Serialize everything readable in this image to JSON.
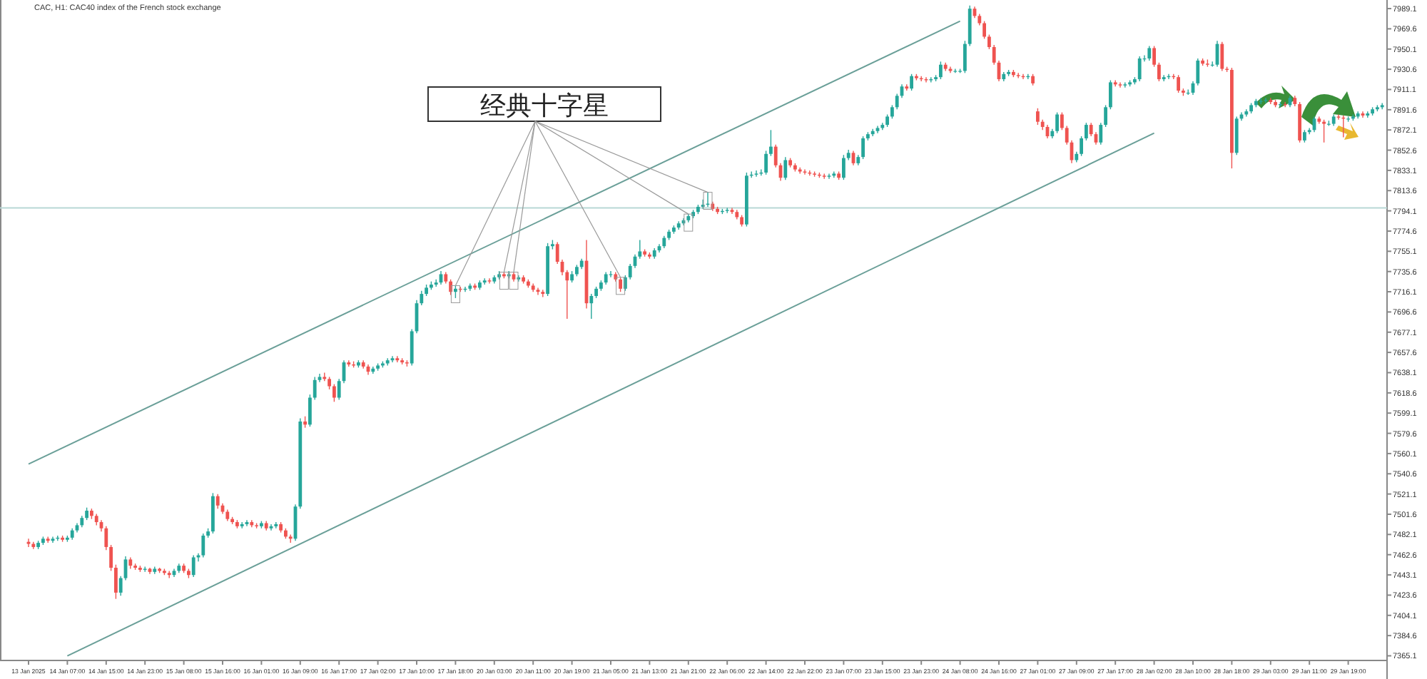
{
  "chart_data": {
    "type": "candlestick",
    "title": "CAC, H1:  CAC40 index of the French stock exchange",
    "categories": [
      "13 Jan 2025",
      null,
      null,
      null,
      null,
      null,
      null,
      null,
      "14 Jan 07:00",
      null,
      null,
      null,
      null,
      null,
      null,
      null,
      "14 Jan 15:00",
      null,
      null,
      null,
      null,
      null,
      null,
      null,
      "14 Jan 23:00",
      null,
      null,
      null,
      null,
      null,
      null,
      null,
      "15 Jan 08:00",
      null,
      null,
      null,
      null,
      null,
      null,
      null,
      "15 Jan 16:00",
      null,
      null,
      null,
      null,
      null,
      null,
      null,
      "16 Jan 01:00",
      null,
      null,
      null,
      null,
      null,
      null,
      null,
      "16 Jan 09:00",
      null,
      null,
      null,
      null,
      null,
      null,
      null,
      "16 Jan 17:00",
      null,
      null,
      null,
      null,
      null,
      null,
      null,
      "17 Jan 02:00",
      null,
      null,
      null,
      null,
      null,
      null,
      null,
      "17 Jan 10:00",
      null,
      null,
      null,
      null,
      null,
      null,
      null,
      "17 Jan 18:00",
      null,
      null,
      null,
      null,
      null,
      null,
      null,
      "20 Jan 03:00",
      null,
      null,
      null,
      null,
      null,
      null,
      null,
      "20 Jan 11:00",
      null,
      null,
      null,
      null,
      null,
      null,
      null,
      "20 Jan 19:00",
      null,
      null,
      null,
      null,
      null,
      null,
      null,
      "21 Jan 05:00",
      null,
      null,
      null,
      null,
      null,
      null,
      null,
      "21 Jan 13:00",
      null,
      null,
      null,
      null,
      null,
      null,
      null,
      "21 Jan 21:00",
      null,
      null,
      null,
      null,
      null,
      null,
      null,
      "22 Jan 06:00",
      null,
      null,
      null,
      null,
      null,
      null,
      null,
      "22 Jan 14:00",
      null,
      null,
      null,
      null,
      null,
      null,
      null,
      "22 Jan 22:00",
      null,
      null,
      null,
      null,
      null,
      null,
      null,
      "23 Jan 07:00",
      null,
      null,
      null,
      null,
      null,
      null,
      null,
      "23 Jan 15:00",
      null,
      null,
      null,
      null,
      null,
      null,
      null,
      "23 Jan 23:00",
      null,
      null,
      null,
      null,
      null,
      null,
      null,
      "24 Jan 08:00",
      null,
      null,
      null,
      null,
      null,
      null,
      null,
      "24 Jan 16:00",
      null,
      null,
      null,
      null,
      null,
      null,
      null,
      "27 Jan 01:00",
      null,
      null,
      null,
      null,
      null,
      null,
      null,
      "27 Jan 09:00",
      null,
      null,
      null,
      null,
      null,
      null,
      null,
      "27 Jan 17:00",
      null,
      null,
      null,
      null,
      null,
      null,
      null,
      "28 Jan 02:00",
      null,
      null,
      null,
      null,
      null,
      null,
      null,
      "28 Jan 10:00",
      null,
      null,
      null,
      null,
      null,
      null,
      null,
      "28 Jan 18:00",
      null,
      null,
      null,
      null,
      null,
      null,
      null,
      "29 Jan 03:00",
      null,
      null,
      null,
      null,
      null,
      null,
      null,
      "29 Jan 11:00",
      null,
      null,
      null,
      null,
      null,
      null,
      null,
      "29 Jan 19:00",
      null,
      null,
      null,
      null,
      null,
      null,
      null
    ],
    "ohlc": [
      [
        7475,
        7478,
        7470,
        7473
      ],
      [
        7473,
        7475,
        7468,
        7470
      ],
      [
        7470,
        7476,
        7468,
        7474
      ],
      [
        7474,
        7480,
        7472,
        7478
      ],
      [
        7478,
        7480,
        7474,
        7476
      ],
      [
        7476,
        7480,
        7474,
        7478
      ],
      [
        7478,
        7481,
        7476,
        7479
      ],
      [
        7479,
        7481,
        7475,
        7477
      ],
      [
        7477,
        7481,
        7475,
        7479
      ],
      [
        7479,
        7488,
        7477,
        7486
      ],
      [
        7486,
        7493,
        7484,
        7491
      ],
      [
        7491,
        7500,
        7489,
        7498
      ],
      [
        7498,
        7508,
        7496,
        7505
      ],
      [
        7505,
        7507,
        7497,
        7500
      ],
      [
        7500,
        7502,
        7491,
        7494
      ],
      [
        7494,
        7496,
        7485,
        7488
      ],
      [
        7488,
        7490,
        7467,
        7470
      ],
      [
        7470,
        7472,
        7447,
        7450
      ],
      [
        7450,
        7453,
        7420,
        7426
      ],
      [
        7426,
        7442,
        7423,
        7440
      ],
      [
        7440,
        7461,
        7438,
        7458
      ],
      [
        7458,
        7460,
        7449,
        7452
      ],
      [
        7452,
        7454,
        7448,
        7450
      ],
      [
        7450,
        7452,
        7446,
        7448
      ],
      [
        7448,
        7451,
        7446,
        7449
      ],
      [
        7449,
        7450,
        7444,
        7446
      ],
      [
        7446,
        7451,
        7444,
        7449
      ],
      [
        7449,
        7450,
        7445,
        7447
      ],
      [
        7447,
        7449,
        7443,
        7445
      ],
      [
        7445,
        7447,
        7440,
        7443
      ],
      [
        7443,
        7449,
        7441,
        7447
      ],
      [
        7447,
        7454,
        7445,
        7452
      ],
      [
        7452,
        7454,
        7445,
        7447
      ],
      [
        7447,
        7449,
        7440,
        7443
      ],
      [
        7443,
        7462,
        7441,
        7460
      ],
      [
        7460,
        7464,
        7456,
        7462
      ],
      [
        7462,
        7483,
        7460,
        7481
      ],
      [
        7481,
        7488,
        7479,
        7485
      ],
      [
        7485,
        7522,
        7483,
        7519
      ],
      [
        7519,
        7521,
        7507,
        7510
      ],
      [
        7510,
        7512,
        7502,
        7504
      ],
      [
        7504,
        7506,
        7495,
        7497
      ],
      [
        7497,
        7499,
        7492,
        7494
      ],
      [
        7494,
        7496,
        7488,
        7490
      ],
      [
        7490,
        7494,
        7488,
        7492
      ],
      [
        7492,
        7496,
        7490,
        7494
      ],
      [
        7494,
        7496,
        7489,
        7491
      ],
      [
        7491,
        7493,
        7488,
        7490
      ],
      [
        7490,
        7495,
        7488,
        7493
      ],
      [
        7493,
        7495,
        7486,
        7488
      ],
      [
        7488,
        7492,
        7486,
        7490
      ],
      [
        7490,
        7494,
        7488,
        7492
      ],
      [
        7492,
        7494,
        7484,
        7486
      ],
      [
        7486,
        7488,
        7478,
        7480
      ],
      [
        7480,
        7482,
        7474,
        7478
      ],
      [
        7478,
        7511,
        7476,
        7509
      ],
      [
        7509,
        7594,
        7507,
        7591
      ],
      [
        7591,
        7596,
        7585,
        7588
      ],
      [
        7588,
        7617,
        7586,
        7614
      ],
      [
        7614,
        7634,
        7612,
        7631
      ],
      [
        7631,
        7637,
        7629,
        7634
      ],
      [
        7634,
        7638,
        7630,
        7632
      ],
      [
        7632,
        7634,
        7622,
        7625
      ],
      [
        7625,
        7627,
        7610,
        7614
      ],
      [
        7614,
        7632,
        7612,
        7630
      ],
      [
        7630,
        7650,
        7628,
        7648
      ],
      [
        7648,
        7650,
        7644,
        7646
      ],
      [
        7646,
        7649,
        7643,
        7645
      ],
      [
        7645,
        7650,
        7643,
        7648
      ],
      [
        7648,
        7650,
        7642,
        7644
      ],
      [
        7644,
        7646,
        7636,
        7639
      ],
      [
        7639,
        7644,
        7637,
        7642
      ],
      [
        7642,
        7647,
        7640,
        7645
      ],
      [
        7645,
        7649,
        7643,
        7647
      ],
      [
        7647,
        7652,
        7645,
        7650
      ],
      [
        7650,
        7654,
        7648,
        7652
      ],
      [
        7652,
        7654,
        7648,
        7650
      ],
      [
        7650,
        7652,
        7646,
        7648
      ],
      [
        7648,
        7650,
        7644,
        7647
      ],
      [
        7647,
        7680,
        7645,
        7678
      ],
      [
        7678,
        7708,
        7676,
        7705
      ],
      [
        7705,
        7717,
        7703,
        7714
      ],
      [
        7714,
        7723,
        7712,
        7720
      ],
      [
        7720,
        7726,
        7718,
        7723
      ],
      [
        7723,
        7728,
        7721,
        7725
      ],
      [
        7725,
        7736,
        7723,
        7733
      ],
      [
        7733,
        7735,
        7724,
        7726
      ],
      [
        7726,
        7728,
        7713,
        7716
      ],
      [
        7716,
        7722,
        7710,
        7719
      ],
      [
        7719,
        7721,
        7716,
        7718
      ],
      [
        7718,
        7721,
        7716,
        7719
      ],
      [
        7719,
        7724,
        7717,
        7722
      ],
      [
        7722,
        7724,
        7718,
        7720
      ],
      [
        7720,
        7727,
        7718,
        7725
      ],
      [
        7725,
        7729,
        7723,
        7727
      ],
      [
        7727,
        7729,
        7724,
        7726
      ],
      [
        7726,
        7732,
        7724,
        7730
      ],
      [
        7730,
        7736,
        7728,
        7733
      ],
      [
        7733,
        7735,
        7729,
        7731
      ],
      [
        7731,
        7736,
        7729,
        7733
      ],
      [
        7733,
        7735,
        7726,
        7728
      ],
      [
        7728,
        7732,
        7726,
        7730
      ],
      [
        7730,
        7732,
        7724,
        7726
      ],
      [
        7726,
        7728,
        7720,
        7722
      ],
      [
        7722,
        7724,
        7716,
        7718
      ],
      [
        7718,
        7720,
        7713,
        7716
      ],
      [
        7716,
        7718,
        7711,
        7714
      ],
      [
        7714,
        7763,
        7712,
        7760
      ],
      [
        7760,
        7766,
        7757,
        7762
      ],
      [
        7762,
        7764,
        7743,
        7745
      ],
      [
        7745,
        7747,
        7732,
        7735
      ],
      [
        7735,
        7737,
        7690,
        7727
      ],
      [
        7727,
        7736,
        7725,
        7733
      ],
      [
        7733,
        7742,
        7731,
        7740
      ],
      [
        7740,
        7748,
        7738,
        7746
      ],
      [
        7746,
        7766,
        7700,
        7705
      ],
      [
        7705,
        7714,
        7690,
        7712
      ],
      [
        7712,
        7721,
        7710,
        7719
      ],
      [
        7719,
        7727,
        7717,
        7725
      ],
      [
        7725,
        7735,
        7723,
        7733
      ],
      [
        7733,
        7736,
        7730,
        7733
      ],
      [
        7733,
        7735,
        7726,
        7728
      ],
      [
        7728,
        7730,
        7716,
        7719
      ],
      [
        7719,
        7732,
        7717,
        7730
      ],
      [
        7730,
        7743,
        7728,
        7741
      ],
      [
        7741,
        7752,
        7739,
        7750
      ],
      [
        7750,
        7766,
        7748,
        7755
      ],
      [
        7755,
        7757,
        7750,
        7752
      ],
      [
        7752,
        7754,
        7748,
        7750
      ],
      [
        7750,
        7758,
        7748,
        7756
      ],
      [
        7756,
        7762,
        7754,
        7760
      ],
      [
        7760,
        7770,
        7758,
        7768
      ],
      [
        7768,
        7776,
        7766,
        7774
      ],
      [
        7774,
        7780,
        7772,
        7778
      ],
      [
        7778,
        7784,
        7776,
        7782
      ],
      [
        7782,
        7787,
        7780,
        7785
      ],
      [
        7785,
        7791,
        7783,
        7789
      ],
      [
        7789,
        7795,
        7787,
        7793
      ],
      [
        7793,
        7800,
        7791,
        7798
      ],
      [
        7798,
        7805,
        7796,
        7800
      ],
      [
        7800,
        7812,
        7798,
        7801
      ],
      [
        7801,
        7803,
        7794,
        7796
      ],
      [
        7796,
        7798,
        7791,
        7793
      ],
      [
        7793,
        7796,
        7791,
        7794
      ],
      [
        7794,
        7797,
        7792,
        7795
      ],
      [
        7795,
        7797,
        7791,
        7793
      ],
      [
        7793,
        7795,
        7786,
        7788
      ],
      [
        7788,
        7790,
        7779,
        7781
      ],
      [
        7781,
        7831,
        7779,
        7828
      ],
      [
        7828,
        7832,
        7826,
        7829
      ],
      [
        7829,
        7833,
        7827,
        7830
      ],
      [
        7830,
        7834,
        7828,
        7831
      ],
      [
        7831,
        7852,
        7829,
        7849
      ],
      [
        7849,
        7872,
        7847,
        7856
      ],
      [
        7856,
        7858,
        7836,
        7838
      ],
      [
        7838,
        7840,
        7823,
        7826
      ],
      [
        7826,
        7846,
        7824,
        7843
      ],
      [
        7843,
        7845,
        7836,
        7838
      ],
      [
        7838,
        7840,
        7832,
        7834
      ],
      [
        7834,
        7836,
        7830,
        7832
      ],
      [
        7832,
        7834,
        7829,
        7831
      ],
      [
        7831,
        7833,
        7828,
        7830
      ],
      [
        7830,
        7832,
        7827,
        7829
      ],
      [
        7829,
        7831,
        7826,
        7828
      ],
      [
        7828,
        7830,
        7825,
        7827
      ],
      [
        7827,
        7830,
        7825,
        7828
      ],
      [
        7828,
        7832,
        7826,
        7830
      ],
      [
        7830,
        7832,
        7824,
        7826
      ],
      [
        7826,
        7848,
        7824,
        7845
      ],
      [
        7845,
        7853,
        7843,
        7850
      ],
      [
        7850,
        7852,
        7838,
        7840
      ],
      [
        7840,
        7848,
        7838,
        7846
      ],
      [
        7846,
        7866,
        7844,
        7864
      ],
      [
        7864,
        7870,
        7862,
        7868
      ],
      [
        7868,
        7873,
        7866,
        7871
      ],
      [
        7871,
        7876,
        7869,
        7874
      ],
      [
        7874,
        7879,
        7872,
        7877
      ],
      [
        7877,
        7887,
        7875,
        7885
      ],
      [
        7885,
        7896,
        7883,
        7894
      ],
      [
        7894,
        7907,
        7892,
        7905
      ],
      [
        7905,
        7916,
        7903,
        7914
      ],
      [
        7914,
        7916,
        7910,
        7912
      ],
      [
        7912,
        7926,
        7910,
        7924
      ],
      [
        7924,
        7926,
        7920,
        7922
      ],
      [
        7922,
        7924,
        7919,
        7921
      ],
      [
        7921,
        7923,
        7918,
        7920
      ],
      [
        7920,
        7923,
        7918,
        7921
      ],
      [
        7921,
        7925,
        7919,
        7923
      ],
      [
        7923,
        7938,
        7921,
        7935
      ],
      [
        7935,
        7937,
        7929,
        7931
      ],
      [
        7931,
        7933,
        7927,
        7929
      ],
      [
        7929,
        7931,
        7927,
        7929
      ],
      [
        7929,
        7931,
        7927,
        7929
      ],
      [
        7929,
        7958,
        7927,
        7955
      ],
      [
        7955,
        7992,
        7953,
        7989
      ],
      [
        7989,
        7991,
        7980,
        7982
      ],
      [
        7982,
        7984,
        7973,
        7975
      ],
      [
        7975,
        7977,
        7960,
        7962
      ],
      [
        7962,
        7964,
        7950,
        7952
      ],
      [
        7952,
        7954,
        7935,
        7937
      ],
      [
        7937,
        7939,
        7919,
        7921
      ],
      [
        7921,
        7928,
        7919,
        7926
      ],
      [
        7926,
        7930,
        7924,
        7928
      ],
      [
        7928,
        7930,
        7923,
        7925
      ],
      [
        7925,
        7927,
        7922,
        7924
      ],
      [
        7924,
        7926,
        7921,
        7923
      ],
      [
        7923,
        7926,
        7921,
        7924
      ],
      [
        7924,
        7926,
        7915,
        7917
      ],
      [
        7890,
        7893,
        7877,
        7880
      ],
      [
        7880,
        7882,
        7872,
        7875
      ],
      [
        7875,
        7877,
        7864,
        7866
      ],
      [
        7866,
        7873,
        7864,
        7871
      ],
      [
        7871,
        7889,
        7869,
        7887
      ],
      [
        7887,
        7889,
        7872,
        7874
      ],
      [
        7874,
        7876,
        7858,
        7860
      ],
      [
        7860,
        7862,
        7840,
        7843
      ],
      [
        7843,
        7851,
        7841,
        7849
      ],
      [
        7849,
        7866,
        7847,
        7864
      ],
      [
        7864,
        7879,
        7862,
        7877
      ],
      [
        7877,
        7879,
        7866,
        7868
      ],
      [
        7868,
        7870,
        7858,
        7860
      ],
      [
        7860,
        7879,
        7858,
        7877
      ],
      [
        7877,
        7896,
        7875,
        7894
      ],
      [
        7894,
        7920,
        7892,
        7918
      ],
      [
        7918,
        7920,
        7914,
        7916
      ],
      [
        7916,
        7918,
        7913,
        7915
      ],
      [
        7915,
        7918,
        7913,
        7916
      ],
      [
        7916,
        7920,
        7914,
        7918
      ],
      [
        7918,
        7923,
        7916,
        7921
      ],
      [
        7921,
        7943,
        7919,
        7941
      ],
      [
        7941,
        7944,
        7938,
        7941
      ],
      [
        7941,
        7953,
        7939,
        7951
      ],
      [
        7951,
        7953,
        7933,
        7935
      ],
      [
        7935,
        7937,
        7919,
        7921
      ],
      [
        7921,
        7925,
        7919,
        7923
      ],
      [
        7923,
        7926,
        7921,
        7924
      ],
      [
        7924,
        7926,
        7921,
        7923
      ],
      [
        7923,
        7925,
        7908,
        7910
      ],
      [
        7910,
        7912,
        7905,
        7908
      ],
      [
        7908,
        7911,
        7906,
        7908
      ],
      [
        7908,
        7919,
        7906,
        7917
      ],
      [
        7917,
        7941,
        7915,
        7939
      ],
      [
        7939,
        7941,
        7934,
        7936
      ],
      [
        7936,
        7940,
        7933,
        7935
      ],
      [
        7935,
        7938,
        7933,
        7935
      ],
      [
        7935,
        7958,
        7933,
        7955
      ],
      [
        7955,
        7957,
        7929,
        7931
      ],
      [
        7931,
        7933,
        7928,
        7930
      ],
      [
        7930,
        7932,
        7835,
        7850
      ],
      [
        7850,
        7885,
        7848,
        7883
      ],
      [
        7883,
        7889,
        7881,
        7887
      ],
      [
        7887,
        7892,
        7885,
        7890
      ],
      [
        7890,
        7898,
        7888,
        7896
      ],
      [
        7896,
        7902,
        7894,
        7900
      ],
      [
        7900,
        7903,
        7897,
        7900
      ],
      [
        7900,
        7903,
        7898,
        7901
      ],
      [
        7901,
        7903,
        7897,
        7899
      ],
      [
        7899,
        7901,
        7894,
        7896
      ],
      [
        7896,
        7899,
        7894,
        7897
      ],
      [
        7897,
        7899,
        7894,
        7896
      ],
      [
        7896,
        7905,
        7894,
        7903
      ],
      [
        7903,
        7905,
        7895,
        7897
      ],
      [
        7897,
        7899,
        7860,
        7862
      ],
      [
        7862,
        7872,
        7860,
        7870
      ],
      [
        7870,
        7874,
        7868,
        7872
      ],
      [
        7872,
        7885,
        7870,
        7883
      ],
      [
        7883,
        7885,
        7878,
        7880
      ],
      [
        7880,
        7882,
        7860,
        7878
      ],
      [
        7878,
        7881,
        7876,
        7878
      ],
      [
        7878,
        7887,
        7876,
        7885
      ],
      [
        7885,
        7887,
        7882,
        7884
      ],
      [
        7884,
        7886,
        7865,
        7883
      ],
      [
        7883,
        7885,
        7880,
        7883
      ],
      [
        7883,
        7887,
        7881,
        7885
      ],
      [
        7885,
        7890,
        7883,
        7888
      ],
      [
        7888,
        7890,
        7884,
        7886
      ],
      [
        7886,
        7890,
        7884,
        7888
      ],
      [
        7888,
        7894,
        7886,
        7892
      ],
      [
        7892,
        7896,
        7890,
        7894
      ],
      [
        7894,
        7898,
        7892,
        7896
      ]
    ],
    "series": [
      {
        "type": "line",
        "x": [
          "13 Jan 2025",
          "24 Jan 08:00"
        ],
        "values": [
          7550,
          7977
        ],
        "color": "#6a9f98"
      },
      {
        "type": "line",
        "x": [
          "14 Jan 07:00",
          "28 Jan 02:00"
        ],
        "values": [
          7365,
          7869
        ],
        "color": "#6a9f98"
      }
    ],
    "ref_lines": [
      {
        "axis": "y",
        "value": 7797,
        "color": "#b8d8d5"
      }
    ],
    "ylim": [
      7362,
      7996
    ],
    "yticks": [
      7989.1,
      7969.6,
      7950.1,
      7930.6,
      7911.1,
      7891.6,
      7872.1,
      7852.6,
      7833.1,
      7813.6,
      7794.1,
      7774.6,
      7755.1,
      7735.6,
      7716.1,
      7696.6,
      7677.1,
      7657.6,
      7638.1,
      7618.6,
      7599.1,
      7579.6,
      7560.1,
      7540.6,
      7521.1,
      7501.6,
      7482.1,
      7462.6,
      7443.1,
      7423.6,
      7404.1,
      7384.6,
      7365.1
    ],
    "annotations": [
      {
        "text": "经典十字星",
        "x": "17 Jan 18:00",
        "y": 7722
      }
    ]
  }
}
